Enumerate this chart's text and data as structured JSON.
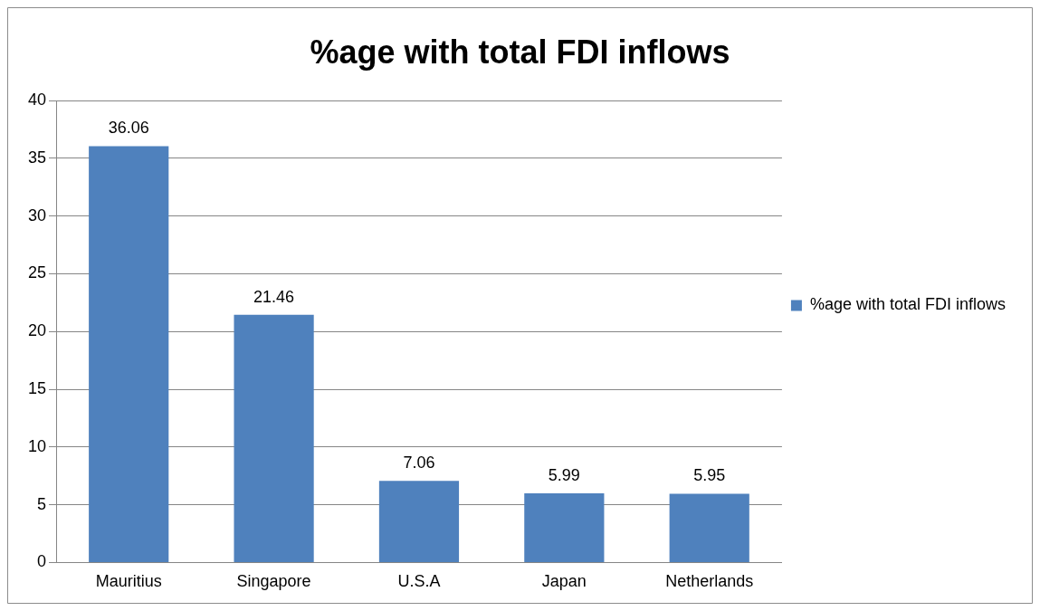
{
  "chart_data": {
    "type": "bar",
    "title": "%age with total FDI inflows",
    "categories": [
      "Mauritius",
      "Singapore",
      "U.S.A",
      "Japan",
      "Netherlands"
    ],
    "series": [
      {
        "name": "%age with total FDI inflows",
        "color": "#4f81bd",
        "values": [
          36.06,
          21.46,
          7.06,
          5.99,
          5.95
        ]
      }
    ],
    "ylim": [
      0,
      40
    ],
    "yticks": [
      0,
      5,
      10,
      15,
      20,
      25,
      30,
      35,
      40
    ],
    "grid": "y",
    "legend": "right",
    "data_labels": true
  }
}
